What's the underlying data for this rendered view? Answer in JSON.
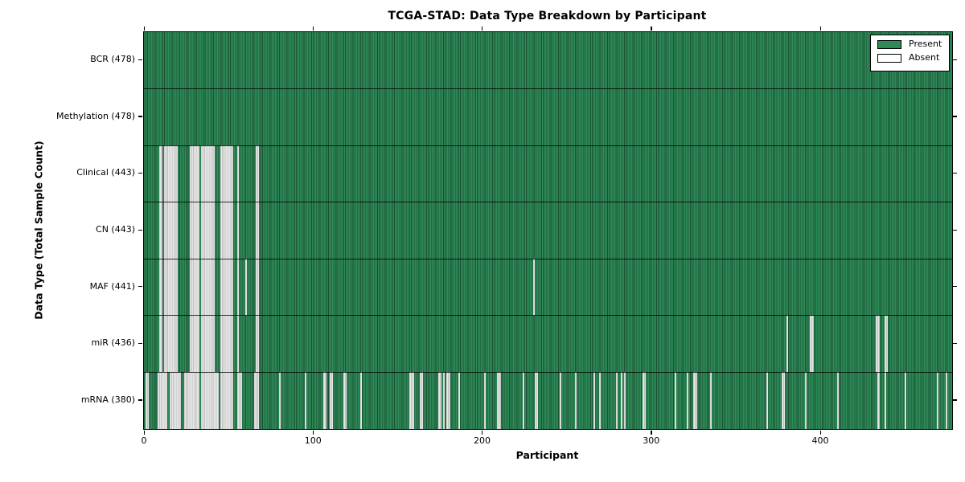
{
  "colors": {
    "present": "#2E8B57",
    "present_edge": "#1A5234",
    "absent": "#E7E7E7",
    "absent_edge": "#BFBFBF",
    "text": "#000000"
  },
  "chart_data": {
    "type": "heatmap",
    "title": "TCGA-STAD: Data Type Breakdown by Participant",
    "xlabel": "Participant",
    "ylabel": "Data Type (Total Sample Count)",
    "legend": [
      "Present",
      "Absent"
    ],
    "legend_position": "upper right",
    "grid": false,
    "participants_total": 478,
    "x_ticks": [
      0,
      100,
      200,
      300,
      400
    ],
    "xlim": [
      0,
      478
    ],
    "cell_states": {
      "present": "green filled cell",
      "absent": "white cell"
    },
    "rows": [
      {
        "label": "BCR (478)",
        "data_type": "BCR",
        "present_count": 478,
        "absent_count": 0,
        "absent_ranges": []
      },
      {
        "label": "Methylation (478)",
        "data_type": "Methylation",
        "present_count": 478,
        "absent_count": 0,
        "absent_ranges": []
      },
      {
        "label": "Clinical (443)",
        "data_type": "Clinical",
        "present_count": 443,
        "absent_count": 35,
        "absent_ranges": [
          [
            9,
            10
          ],
          [
            12,
            19
          ],
          [
            27,
            32
          ],
          [
            34,
            41
          ],
          [
            45,
            52
          ],
          [
            55,
            55
          ],
          [
            66,
            67
          ]
        ]
      },
      {
        "label": "CN (443)",
        "data_type": "CN",
        "present_count": 443,
        "absent_count": 35,
        "absent_ranges": [
          [
            9,
            10
          ],
          [
            12,
            19
          ],
          [
            27,
            32
          ],
          [
            34,
            41
          ],
          [
            45,
            52
          ],
          [
            55,
            55
          ],
          [
            66,
            67
          ]
        ]
      },
      {
        "label": "MAF (441)",
        "data_type": "MAF",
        "present_count": 441,
        "absent_count": 37,
        "absent_ranges": [
          [
            9,
            10
          ],
          [
            12,
            19
          ],
          [
            27,
            32
          ],
          [
            34,
            41
          ],
          [
            45,
            52
          ],
          [
            55,
            55
          ],
          [
            60,
            60
          ],
          [
            66,
            67
          ],
          [
            230,
            230
          ]
        ]
      },
      {
        "label": "miR (436)",
        "data_type": "miR",
        "present_count": 436,
        "absent_count": 42,
        "absent_ranges": [
          [
            9,
            10
          ],
          [
            12,
            19
          ],
          [
            27,
            32
          ],
          [
            34,
            41
          ],
          [
            45,
            52
          ],
          [
            55,
            55
          ],
          [
            66,
            67
          ],
          [
            380,
            380
          ],
          [
            394,
            395
          ],
          [
            433,
            434
          ],
          [
            438,
            439
          ]
        ]
      },
      {
        "label": "mRNA (380)",
        "data_type": "mRNA",
        "present_count": 380,
        "absent_count": 98,
        "absent_ranges": [
          [
            1,
            2
          ],
          [
            8,
            13
          ],
          [
            15,
            21
          ],
          [
            24,
            32
          ],
          [
            34,
            43
          ],
          [
            45,
            52
          ],
          [
            55,
            57
          ],
          [
            65,
            67
          ],
          [
            80,
            80
          ],
          [
            95,
            95
          ],
          [
            106,
            107
          ],
          [
            110,
            111
          ],
          [
            118,
            119
          ],
          [
            128,
            128
          ],
          [
            157,
            159
          ],
          [
            163,
            164
          ],
          [
            174,
            175
          ],
          [
            177,
            177
          ],
          [
            179,
            180
          ],
          [
            186,
            186
          ],
          [
            201,
            201
          ],
          [
            209,
            210
          ],
          [
            224,
            224
          ],
          [
            231,
            232
          ],
          [
            246,
            246
          ],
          [
            255,
            255
          ],
          [
            266,
            266
          ],
          [
            269,
            269
          ],
          [
            279,
            279
          ],
          [
            282,
            282
          ],
          [
            284,
            284
          ],
          [
            295,
            296
          ],
          [
            314,
            314
          ],
          [
            321,
            321
          ],
          [
            325,
            326
          ],
          [
            335,
            335
          ],
          [
            368,
            368
          ],
          [
            377,
            378
          ],
          [
            391,
            391
          ],
          [
            410,
            410
          ],
          [
            434,
            434
          ],
          [
            438,
            438
          ],
          [
            450,
            450
          ],
          [
            469,
            469
          ],
          [
            474,
            474
          ]
        ]
      }
    ]
  }
}
